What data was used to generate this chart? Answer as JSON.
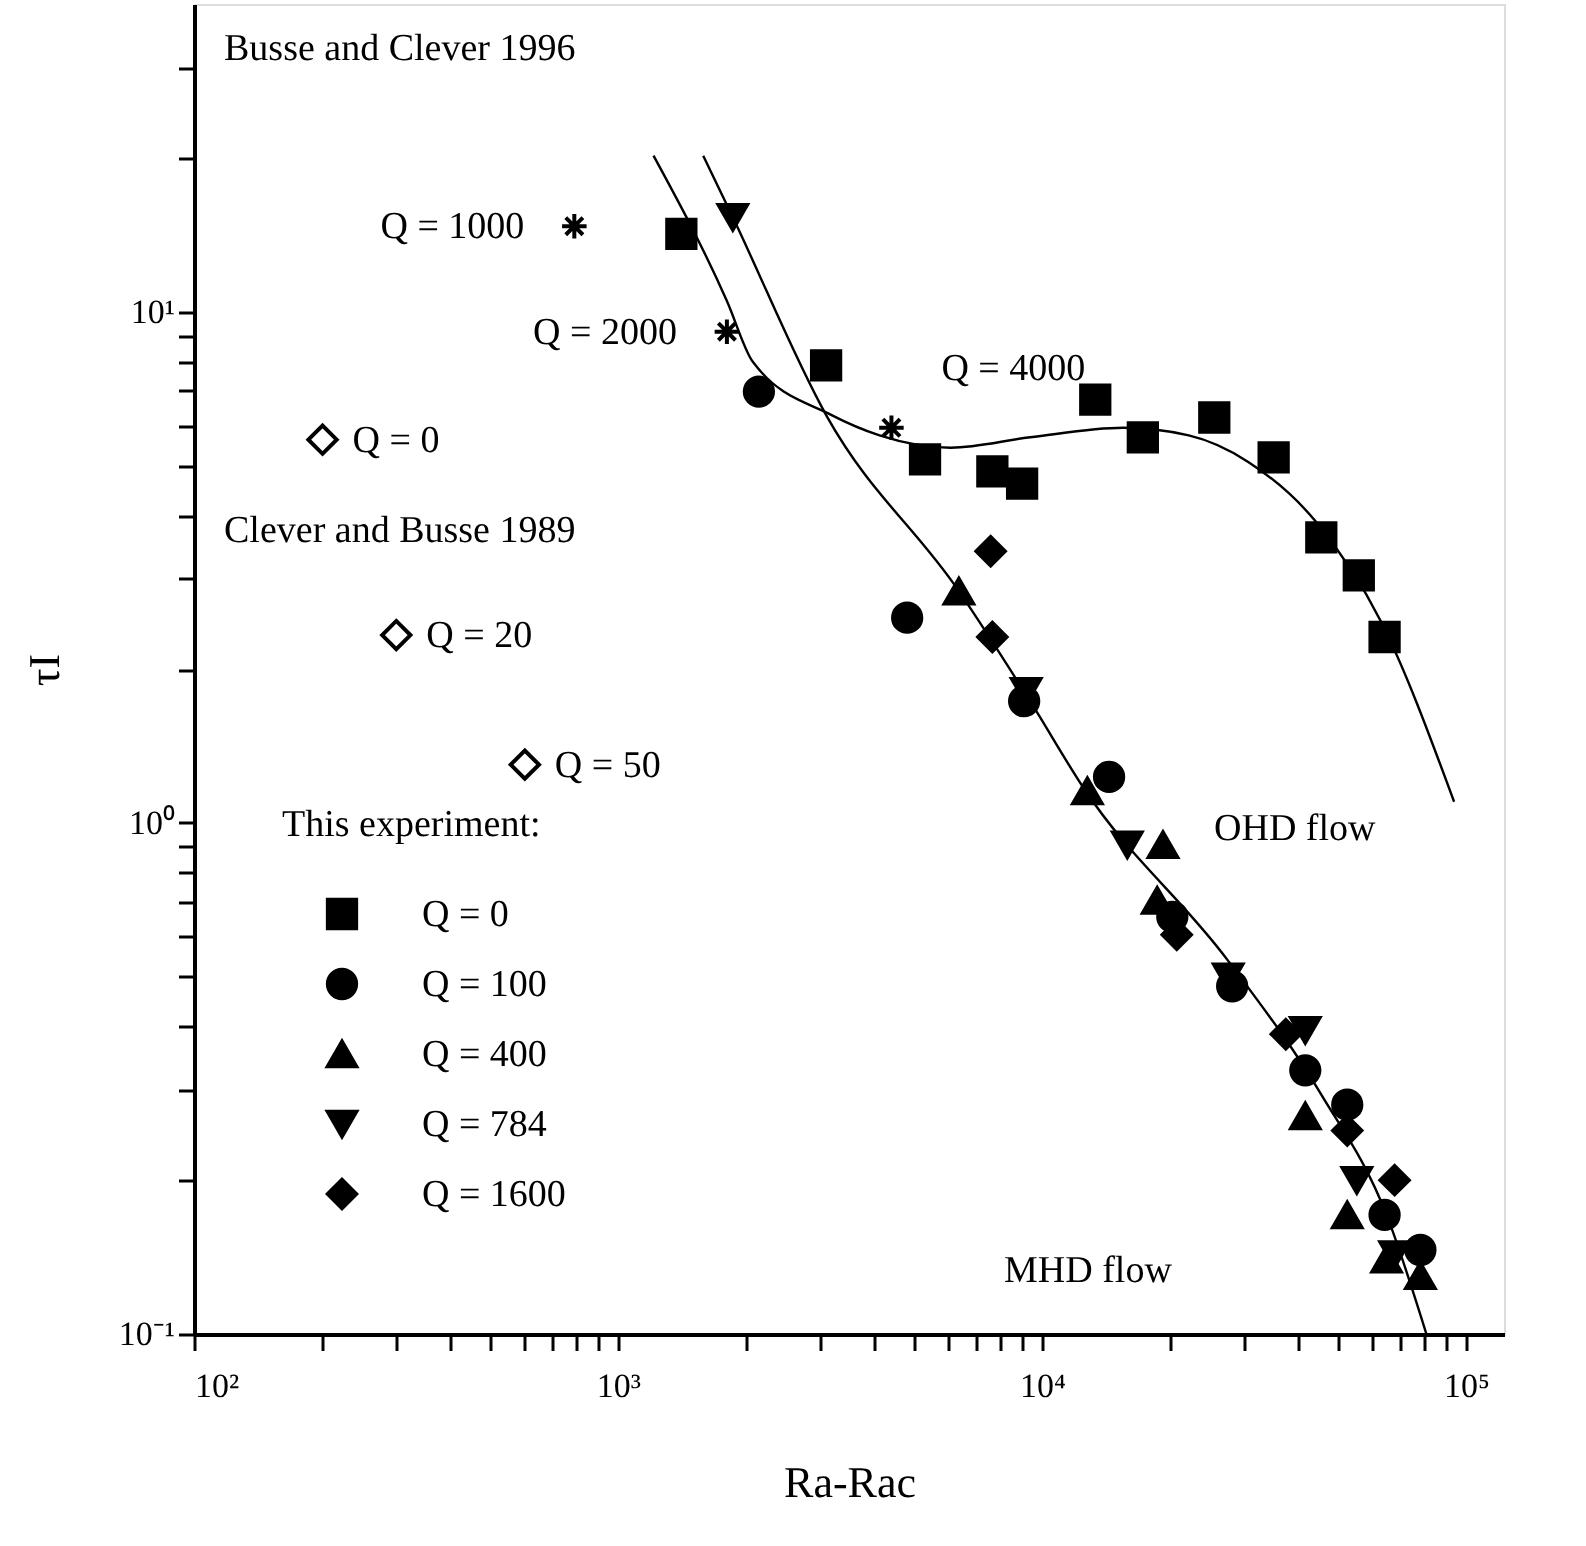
{
  "chart_data": {
    "type": "scatter",
    "xlabel": "Ra-Rac",
    "ylabel": "τI",
    "legend_title": "This experiment:",
    "log": "xy",
    "grid": false,
    "legend": "bottom left",
    "xlim": [
      100,
      123000
    ],
    "ylim": [
      0.1,
      40
    ],
    "xticks": [
      {
        "value": 100,
        "label": "10²"
      },
      {
        "value": 200,
        "label": null
      },
      {
        "value": 300,
        "label": null
      },
      {
        "value": 400,
        "label": null
      },
      {
        "value": 500,
        "label": null
      },
      {
        "value": 600,
        "label": null
      },
      {
        "value": 700,
        "label": null
      },
      {
        "value": 800,
        "label": null
      },
      {
        "value": 900,
        "label": null
      },
      {
        "value": 1000,
        "label": "10³"
      },
      {
        "value": 2000,
        "label": null
      },
      {
        "value": 3000,
        "label": null
      },
      {
        "value": 4000,
        "label": null
      },
      {
        "value": 5000,
        "label": null
      },
      {
        "value": 6000,
        "label": null
      },
      {
        "value": 7000,
        "label": null
      },
      {
        "value": 8000,
        "label": null
      },
      {
        "value": 9000,
        "label": null
      },
      {
        "value": 10000,
        "label": "10⁴"
      },
      {
        "value": 20000,
        "label": null
      },
      {
        "value": 30000,
        "label": null
      },
      {
        "value": 40000,
        "label": null
      },
      {
        "value": 50000,
        "label": null
      },
      {
        "value": 60000,
        "label": null
      },
      {
        "value": 70000,
        "label": null
      },
      {
        "value": 80000,
        "label": null
      },
      {
        "value": 90000,
        "label": null
      },
      {
        "value": 100000,
        "label": "10⁵"
      }
    ],
    "yticks": [
      {
        "value": 0.1,
        "label": "10⁻¹"
      },
      {
        "value": 0.2,
        "label": null
      },
      {
        "value": 0.3,
        "label": null
      },
      {
        "value": 0.4,
        "label": null
      },
      {
        "value": 0.5,
        "label": null
      },
      {
        "value": 0.6,
        "label": null
      },
      {
        "value": 0.7,
        "label": null
      },
      {
        "value": 0.8,
        "label": null
      },
      {
        "value": 0.9,
        "label": null
      },
      {
        "value": 1,
        "label": "10⁰"
      },
      {
        "value": 2,
        "label": null
      },
      {
        "value": 3,
        "label": null
      },
      {
        "value": 4,
        "label": null
      },
      {
        "value": 5,
        "label": null
      },
      {
        "value": 6,
        "label": null
      },
      {
        "value": 7,
        "label": null
      },
      {
        "value": 8,
        "label": null
      },
      {
        "value": 9,
        "label": null
      },
      {
        "value": 10,
        "label": "10¹"
      },
      {
        "value": 20,
        "label": null
      },
      {
        "value": 30,
        "label": null
      }
    ],
    "series": [
      {
        "name": "Q = 0",
        "marker": "square",
        "color": "#000000",
        "x": [
          1411,
          3097,
          5300,
          7640,
          8980,
          13360,
          17300,
          25500,
          35200,
          45600,
          55900,
          64300
        ],
        "values": [
          14.2,
          7.85,
          5.14,
          4.87,
          4.61,
          6.73,
          5.68,
          6.21,
          5.19,
          3.62,
          3.05,
          2.31
        ]
      },
      {
        "name": "Q = 100",
        "marker": "circle",
        "color": "#000000",
        "x": [
          2150,
          4810,
          9080,
          14400,
          20300,
          28100,
          41800,
          52500,
          64300,
          78100
        ],
        "values": [
          6.98,
          2.52,
          1.73,
          1.23,
          0.655,
          0.479,
          0.328,
          0.281,
          0.171,
          0.146
        ]
      },
      {
        "name": "Q = 400",
        "marker": "triangle",
        "color": "#000000",
        "x": [
          6370,
          12800,
          19300,
          18700,
          41800,
          52500,
          65000,
          78100
        ],
        "values": [
          2.84,
          1.155,
          0.906,
          0.705,
          0.267,
          0.171,
          0.14,
          0.13
        ]
      },
      {
        "name": "Q = 784",
        "marker": "triangle-down",
        "color": "#000000",
        "x": [
          1866,
          9180,
          15900,
          27500,
          41800,
          55300,
          67900
        ],
        "values": [
          15.3,
          1.81,
          0.906,
          0.5,
          0.393,
          0.2,
          0.143
        ]
      },
      {
        "name": "Q = 1600",
        "marker": "diamond",
        "color": "#000000",
        "x": [
          7570,
          7640,
          20800,
          37600,
          52500,
          67900
        ],
        "values": [
          3.4,
          2.31,
          0.604,
          0.386,
          0.25,
          0.2
        ]
      },
      {
        "marker": "cross",
        "color": "#000000",
        "x": [
          789,
          1807,
          4416
        ],
        "values": [
          14.7,
          9.14,
          5.93
        ]
      },
      {
        "marker": "diamond",
        "color": "#ffffff",
        "x": [
          201,
          300,
          603
        ],
        "values": [
          5.62,
          2.33,
          1.3
        ]
      },
      {
        "type": "line",
        "line_style": "solid",
        "color": "#000000",
        "x": [
          1213,
          1807,
          2080,
          3200,
          4140,
          6100,
          9380,
          15550,
          22200,
          30600,
          44200,
          63000,
          93800
        ],
        "values": [
          20.2,
          10.5,
          7.98,
          6.27,
          5.73,
          5.42,
          5.68,
          5.93,
          5.73,
          5.09,
          3.89,
          2.48,
          1.1
        ]
      },
      {
        "type": "line",
        "line_style": "solid",
        "color": "#000000",
        "x": [
          1589,
          1866,
          3100,
          6370,
          9380,
          12540,
          27500,
          45600,
          65000,
          80700
        ],
        "values": [
          20.2,
          15.3,
          6.27,
          2.84,
          1.73,
          1.17,
          0.537,
          0.294,
          0.171,
          0.1
        ]
      }
    ],
    "annotations": [
      "Busse and Clever 1996",
      {
        "text": "Q = 1000",
        "x": 789,
        "y": 14.7
      },
      {
        "text": "Q = 2000",
        "x": 1807,
        "y": 9.14
      },
      {
        "text": "Q = 4000",
        "x": 4416,
        "y": 5.93
      },
      {
        "text": "Q = 0",
        "x": 201,
        "y": 5.62
      },
      "Clever and Busse 1989",
      {
        "text": "Q = 20",
        "x": 300,
        "y": 2.33
      },
      {
        "text": "Q = 50",
        "x": 603,
        "y": 1.3
      },
      "OHD flow",
      "MHD flow"
    ]
  }
}
